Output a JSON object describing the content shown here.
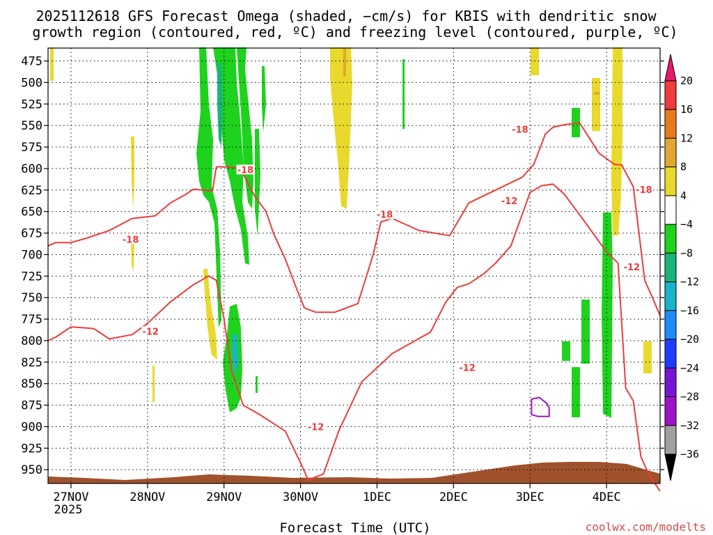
{
  "chart_data": {
    "type": "time-height",
    "title_line1": "2025112618 GFS Forecast Omega (shaded, −cm/s) for KBIS with dendritic snow",
    "title_line2": "growth region (contoured, red, ºC) and freezing level (contoured, purple, ºC)",
    "xlabel": "Forecast Time (UTC)",
    "x_ticks": [
      "27NOV",
      "28NOV",
      "29NOV",
      "30NOV",
      "1DEC",
      "2DEC",
      "3DEC",
      "4DEC"
    ],
    "x_tick_year": "2025",
    "x_range_days": [
      -0.3,
      7.7
    ],
    "y_ticks": [
      475,
      500,
      525,
      550,
      575,
      600,
      625,
      650,
      675,
      700,
      725,
      750,
      775,
      800,
      825,
      850,
      875,
      900,
      925,
      950
    ],
    "ylim_hpa": [
      460,
      966
    ],
    "colorbar": {
      "labels": [
        "20",
        "16",
        "12",
        "8",
        "4",
        "−4",
        "−8",
        "−12",
        "−16",
        "−20",
        "−24",
        "−28",
        "−32",
        "−36"
      ],
      "colors": [
        "#e8186e",
        "#ee3b3b",
        "#e87a1e",
        "#e0a832",
        "#e8d92c",
        "#ffffff",
        "#1ed21e",
        "#18b47a",
        "#1ab4c8",
        "#1e8cff",
        "#1e3cff",
        "#7814d2",
        "#a012c8",
        "#a0a0a0",
        "#000000"
      ]
    },
    "contour_labels": [
      {
        "text": "-18",
        "day": 0.78,
        "hpa": 683
      },
      {
        "text": "-18",
        "day": 2.28,
        "hpa": 602
      },
      {
        "text": "-18",
        "day": 4.1,
        "hpa": 654
      },
      {
        "text": "-18",
        "day": 5.87,
        "hpa": 555
      },
      {
        "text": "-18",
        "day": 7.49,
        "hpa": 625
      },
      {
        "text": "-12",
        "day": 1.04,
        "hpa": 790
      },
      {
        "text": "-12",
        "day": 3.2,
        "hpa": 901
      },
      {
        "text": "-12",
        "day": 5.18,
        "hpa": 832
      },
      {
        "text": "-12",
        "day": 5.73,
        "hpa": 638
      },
      {
        "text": "-12",
        "day": 7.33,
        "hpa": 715
      }
    ],
    "series": [
      {
        "name": "dgz-upper (-18C)",
        "color": "#ee3b3b",
        "day": [
          -0.3,
          -0.2,
          0,
          0.2,
          0.5,
          0.8,
          1.1,
          1.3,
          1.5,
          1.6,
          1.85,
          1.9,
          2.05,
          2.2,
          2.25,
          2.4,
          2.55,
          2.65,
          2.8,
          2.95,
          3.05,
          3.2,
          3.45,
          3.75,
          3.95,
          4.05,
          4.2,
          4.55,
          4.95,
          5.2,
          5.55,
          5.9,
          6.05,
          6.2,
          6.3,
          6.45,
          6.65,
          6.75,
          6.9,
          7.1,
          7.2,
          7.35,
          7.5,
          7.6,
          7.7
        ],
        "hpa": [
          690,
          686,
          686,
          681,
          672,
          658,
          655,
          640,
          630,
          624,
          626,
          598,
          598,
          600,
          606,
          632,
          650,
          676,
          705,
          740,
          762,
          767,
          767,
          757,
          700,
          662,
          658,
          672,
          678,
          640,
          625,
          610,
          595,
          560,
          552,
          549,
          547,
          561,
          582,
          595,
          596,
          621,
          730,
          750,
          771
        ]
      },
      {
        "name": "dgz-lower (-12C)",
        "color": "#ee3b3b",
        "day": [
          -0.3,
          -0.2,
          0,
          0.3,
          0.5,
          0.8,
          1.0,
          1.3,
          1.6,
          1.8,
          1.9,
          2.0,
          2.1,
          2.25,
          2.45,
          2.8,
          3.0,
          3.1,
          3.3,
          3.5,
          3.8,
          4.2,
          4.7,
          4.9,
          5.05,
          5.2,
          5.4,
          5.55,
          5.75,
          6.0,
          6.15,
          6.3,
          6.45,
          6.55,
          6.7,
          7.0,
          7.15,
          7.25,
          7.35,
          7.45,
          7.55,
          7.7
        ],
        "hpa": [
          800,
          796,
          784,
          786,
          798,
          793,
          780,
          755,
          735,
          725,
          730,
          775,
          835,
          875,
          885,
          905,
          942,
          962,
          955,
          905,
          848,
          815,
          790,
          755,
          738,
          734,
          722,
          710,
          690,
          628,
          620,
          618,
          630,
          642,
          660,
          697,
          710,
          855,
          870,
          935,
          955,
          975
        ]
      },
      {
        "name": "fzl-purple",
        "color": "#9b12c8",
        "closed": true,
        "day": [
          6.02,
          6.12,
          6.22,
          6.25,
          6.25,
          6.1,
          6.02,
          6.02
        ],
        "hpa": [
          868,
          866,
          873,
          878,
          888,
          888,
          886,
          868
        ]
      }
    ],
    "terrain_color": "#a0522d"
  },
  "watermark": "coolwx.com/modelts"
}
